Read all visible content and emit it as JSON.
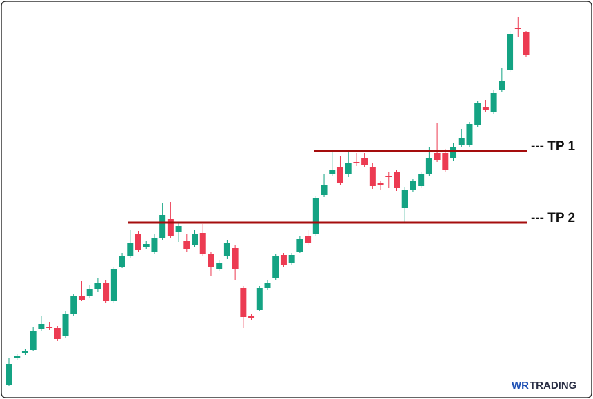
{
  "chart_data": {
    "type": "candlestick",
    "ylim": [
      0,
      579
    ],
    "up_color": "#14a383",
    "down_color": "#ec3b52",
    "open": [
      21,
      59,
      67,
      71,
      101,
      105,
      103,
      91,
      124,
      149,
      149,
      159,
      169,
      142,
      192,
      207,
      239,
      221,
      214,
      234,
      261,
      242,
      229,
      223,
      241,
      211,
      189,
      207,
      219,
      161,
      121,
      129,
      161,
      176,
      209,
      197,
      214,
      237,
      239,
      296,
      327,
      337,
      326,
      344,
      349,
      336,
      314,
      324,
      329,
      277,
      304,
      309,
      326,
      357,
      357,
      349,
      368,
      369,
      397,
      424,
      416,
      449,
      478,
      539,
      532
    ],
    "high": [
      59,
      65,
      72,
      104,
      120,
      112,
      106,
      127,
      152,
      171,
      165,
      175,
      172,
      192,
      212,
      245,
      244,
      230,
      239,
      284,
      286,
      256,
      240,
      245,
      254,
      214,
      201,
      231,
      223,
      164,
      124,
      164,
      173,
      210,
      212,
      212,
      236,
      245,
      294,
      327,
      360,
      353,
      359,
      357,
      357,
      342,
      317,
      330,
      333,
      307,
      319,
      330,
      365,
      400,
      363,
      372,
      392,
      402,
      433,
      434,
      448,
      481,
      534,
      555,
      534
    ],
    "low": [
      19,
      57,
      64,
      69,
      98,
      100,
      84,
      88,
      121,
      142,
      147,
      155,
      139,
      140,
      190,
      205,
      213,
      218,
      210,
      231,
      233,
      228,
      213,
      220,
      207,
      178,
      186,
      203,
      173,
      103,
      115,
      127,
      158,
      173,
      191,
      195,
      212,
      224,
      236,
      293,
      324,
      311,
      322,
      338,
      336,
      305,
      304,
      306,
      302,
      256,
      301,
      306,
      323,
      344,
      330,
      346,
      366,
      366,
      394,
      416,
      413,
      446,
      475,
      525,
      496
    ],
    "close": [
      51,
      62,
      69,
      99,
      109,
      103,
      87,
      124,
      149,
      144,
      159,
      169,
      142,
      189,
      207,
      227,
      216,
      225,
      234,
      267,
      236,
      251,
      217,
      239,
      211,
      191,
      197,
      227,
      189,
      119,
      118,
      161,
      169,
      207,
      194,
      209,
      232,
      227,
      291,
      311,
      333,
      314,
      342,
      342,
      339,
      309,
      311,
      322,
      306,
      303,
      316,
      327,
      349,
      347,
      333,
      366,
      379,
      399,
      429,
      419,
      444,
      461,
      529,
      537,
      499
    ],
    "levels": [
      {
        "label": "--- TP 1",
        "value": 360,
        "color": "#a50d0d"
      },
      {
        "label": "--- TP 2",
        "value": 256,
        "color": "#a50d0d"
      }
    ],
    "logo": {
      "mark": "WR",
      "name": "TRADING"
    }
  }
}
